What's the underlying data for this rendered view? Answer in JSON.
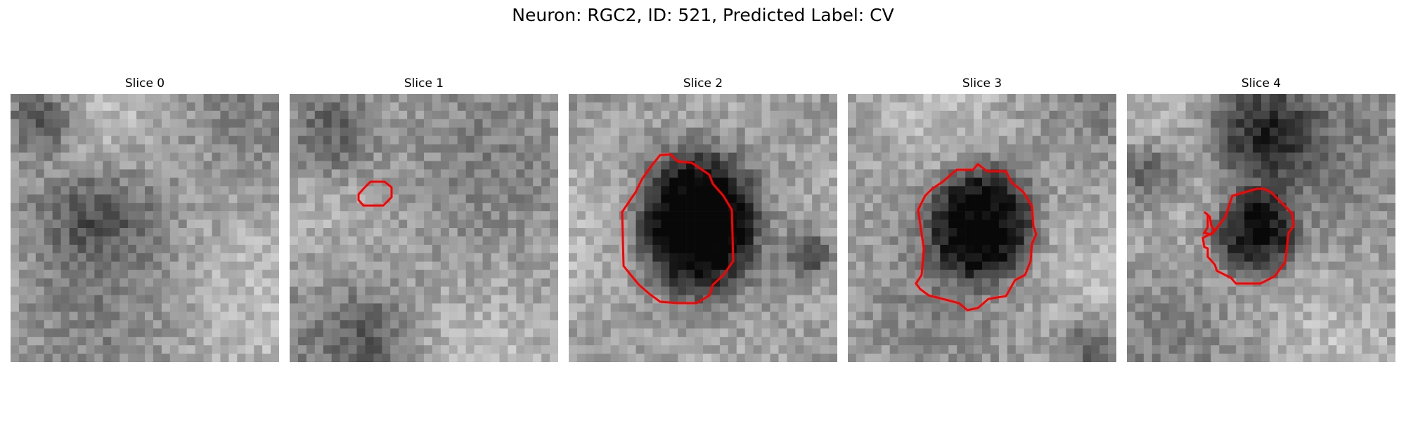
{
  "figure": {
    "title": "Neuron: RGC2, ID: 521, Predicted Label: CV"
  },
  "panels": [
    {
      "title": "Slice 0",
      "pattern": "noise-a",
      "contour_color": "#ff0000"
    },
    {
      "title": "Slice 1",
      "pattern": "noise-b",
      "contour_color": "#ff0000"
    },
    {
      "title": "Slice 2",
      "pattern": "dark-blob",
      "contour_color": "#ff0000"
    },
    {
      "title": "Slice 3",
      "pattern": "dark-blob-round",
      "contour_color": "#ff0000"
    },
    {
      "title": "Slice 4",
      "pattern": "dark-blob-lobed",
      "contour_color": "#ff0000"
    }
  ]
}
